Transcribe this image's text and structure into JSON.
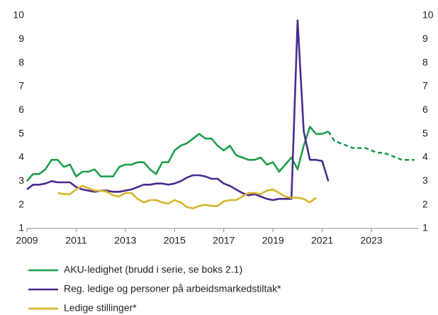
{
  "chart_data": {
    "type": "line",
    "x": [
      2009,
      2009.25,
      2009.5,
      2009.75,
      2010,
      2010.25,
      2010.5,
      2010.75,
      2011,
      2011.25,
      2011.5,
      2011.75,
      2012,
      2012.25,
      2012.5,
      2012.75,
      2013,
      2013.25,
      2013.5,
      2013.75,
      2014,
      2014.25,
      2014.5,
      2014.75,
      2015,
      2015.25,
      2015.5,
      2015.75,
      2016,
      2016.25,
      2016.5,
      2016.75,
      2017,
      2017.25,
      2017.5,
      2017.75,
      2018,
      2018.25,
      2018.5,
      2018.75,
      2019,
      2019.25,
      2019.5,
      2019.75,
      2020,
      2020.25,
      2020.5,
      2020.75,
      2021,
      2021.25,
      2021.5,
      2021.75,
      2022,
      2022.25,
      2022.5,
      2022.75,
      2023,
      2023.25,
      2023.5,
      2023.75,
      2024,
      2024.25,
      2024.5,
      2024.75
    ],
    "series": [
      {
        "name": "AKU-ledighet (brudd i serie, se boks 2.1)",
        "color": "#1e9e4a",
        "values": [
          3.0,
          3.3,
          3.3,
          3.5,
          3.9,
          3.9,
          3.6,
          3.7,
          3.2,
          3.4,
          3.4,
          3.5,
          3.2,
          3.2,
          3.2,
          3.6,
          3.7,
          3.7,
          3.8,
          3.8,
          3.5,
          3.3,
          3.8,
          3.8,
          4.3,
          4.5,
          4.6,
          4.8,
          5.0,
          4.8,
          4.8,
          4.5,
          4.3,
          4.5,
          4.1,
          4.0,
          3.9,
          3.9,
          4.0,
          3.7,
          3.8,
          3.4,
          3.7,
          4.0,
          3.5,
          4.5,
          5.3,
          5.0,
          5.0,
          5.1,
          null,
          null,
          null,
          null,
          null,
          null,
          null,
          null,
          null,
          null,
          null,
          null,
          null,
          null
        ]
      },
      {
        "name": "Reg. ledige og personer på arbeidsmarkedstiltak*",
        "color": "#4a2b8e",
        "values": [
          2.65,
          2.85,
          2.85,
          2.9,
          3.0,
          2.95,
          2.95,
          2.95,
          2.75,
          2.65,
          2.6,
          2.55,
          2.6,
          2.6,
          2.55,
          2.55,
          2.6,
          2.65,
          2.75,
          2.85,
          2.85,
          2.9,
          2.9,
          2.85,
          2.9,
          3.0,
          3.15,
          3.25,
          3.25,
          3.2,
          3.1,
          3.1,
          2.9,
          2.8,
          2.65,
          2.5,
          2.4,
          2.45,
          2.35,
          2.25,
          2.2,
          2.25,
          2.25,
          2.25,
          9.8,
          5.1,
          3.9,
          3.9,
          3.85,
          3.0,
          null,
          null,
          null,
          null,
          null,
          null,
          null,
          null,
          null,
          null,
          null,
          null,
          null,
          null
        ]
      },
      {
        "name": "Ledige stillinger*",
        "color": "#d6b62c",
        "values": [
          null,
          null,
          null,
          null,
          null,
          2.5,
          2.45,
          2.45,
          2.65,
          2.8,
          2.7,
          2.6,
          2.6,
          2.55,
          2.4,
          2.35,
          2.5,
          2.5,
          2.25,
          2.1,
          2.2,
          2.2,
          2.1,
          2.05,
          2.2,
          2.1,
          1.9,
          1.85,
          1.95,
          2.0,
          1.95,
          1.95,
          2.15,
          2.2,
          2.2,
          2.35,
          2.5,
          2.5,
          2.45,
          2.6,
          2.65,
          2.5,
          2.35,
          2.3,
          2.3,
          2.25,
          2.1,
          2.3,
          null,
          null,
          null,
          null,
          null,
          null,
          null,
          null,
          null,
          null,
          null,
          null,
          null,
          null,
          null,
          null
        ]
      },
      {
        "color": "#1e9e4a",
        "dashed": true,
        "values": [
          null,
          null,
          null,
          null,
          null,
          null,
          null,
          null,
          null,
          null,
          null,
          null,
          null,
          null,
          null,
          null,
          null,
          null,
          null,
          null,
          null,
          null,
          null,
          null,
          null,
          null,
          null,
          null,
          null,
          null,
          null,
          null,
          null,
          null,
          null,
          null,
          null,
          null,
          null,
          null,
          null,
          null,
          null,
          null,
          null,
          null,
          null,
          null,
          null,
          5.1,
          4.7,
          4.6,
          4.5,
          4.4,
          4.4,
          4.4,
          4.3,
          4.2,
          4.2,
          4.1,
          4.0,
          3.9,
          3.9,
          3.9
        ]
      }
    ],
    "xlim": [
      2009,
      2024.9
    ],
    "xticks": [
      2009,
      2011,
      2013,
      2015,
      2017,
      2019,
      2021,
      2023
    ],
    "ylim": [
      1,
      10
    ],
    "yticks": [
      1,
      2,
      3,
      4,
      5,
      6,
      7,
      8,
      9,
      10
    ],
    "y2lim": [
      1,
      10
    ],
    "y2ticks": [
      1,
      2,
      3,
      4,
      5,
      6,
      7,
      8,
      9,
      10
    ]
  }
}
